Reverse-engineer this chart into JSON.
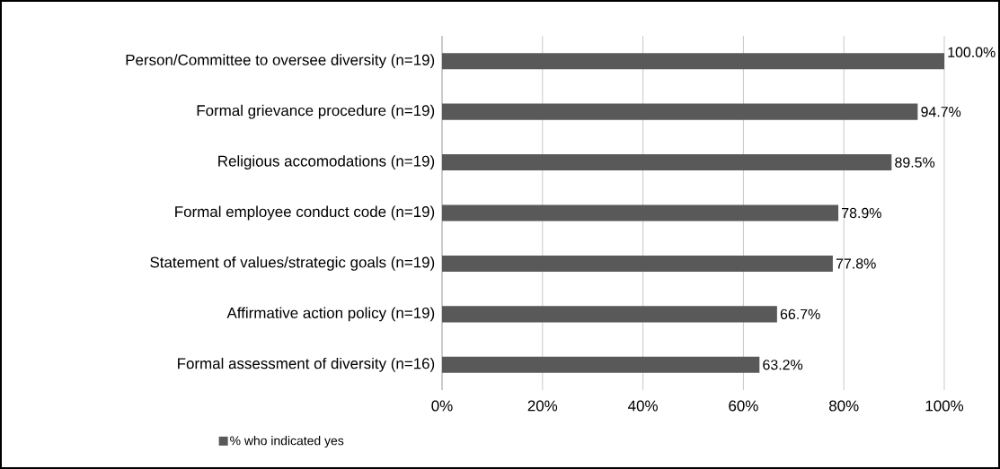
{
  "chart_data": {
    "type": "bar",
    "orientation": "horizontal",
    "categories": [
      "Person/Committee to oversee diversity (n=19)",
      "Formal grievance procedure (n=19)",
      "Religious accomodations (n=19)",
      "Formal employee conduct code (n=19)",
      "Statement of values/strategic goals (n=19)",
      "Affirmative action policy (n=19)",
      "Formal assessment of diversity (n=16)"
    ],
    "series": [
      {
        "name": "% who indicated yes",
        "color": "#595959",
        "values": [
          100.0,
          94.7,
          89.5,
          78.9,
          77.8,
          66.7,
          63.2
        ],
        "value_labels": [
          "100.0%",
          "94.7%",
          "89.5%",
          "78.9%",
          "77.8%",
          "66.7%",
          "63.2%"
        ]
      }
    ],
    "xlim": [
      0,
      100
    ],
    "xticks": [
      {
        "value": 0,
        "label": "0%"
      },
      {
        "value": 20,
        "label": "20%"
      },
      {
        "value": 40,
        "label": "40%"
      },
      {
        "value": 60,
        "label": "60%"
      },
      {
        "value": 80,
        "label": "80%"
      },
      {
        "value": 100,
        "label": "100%"
      }
    ],
    "grid": "x",
    "legend": "bottom left"
  }
}
